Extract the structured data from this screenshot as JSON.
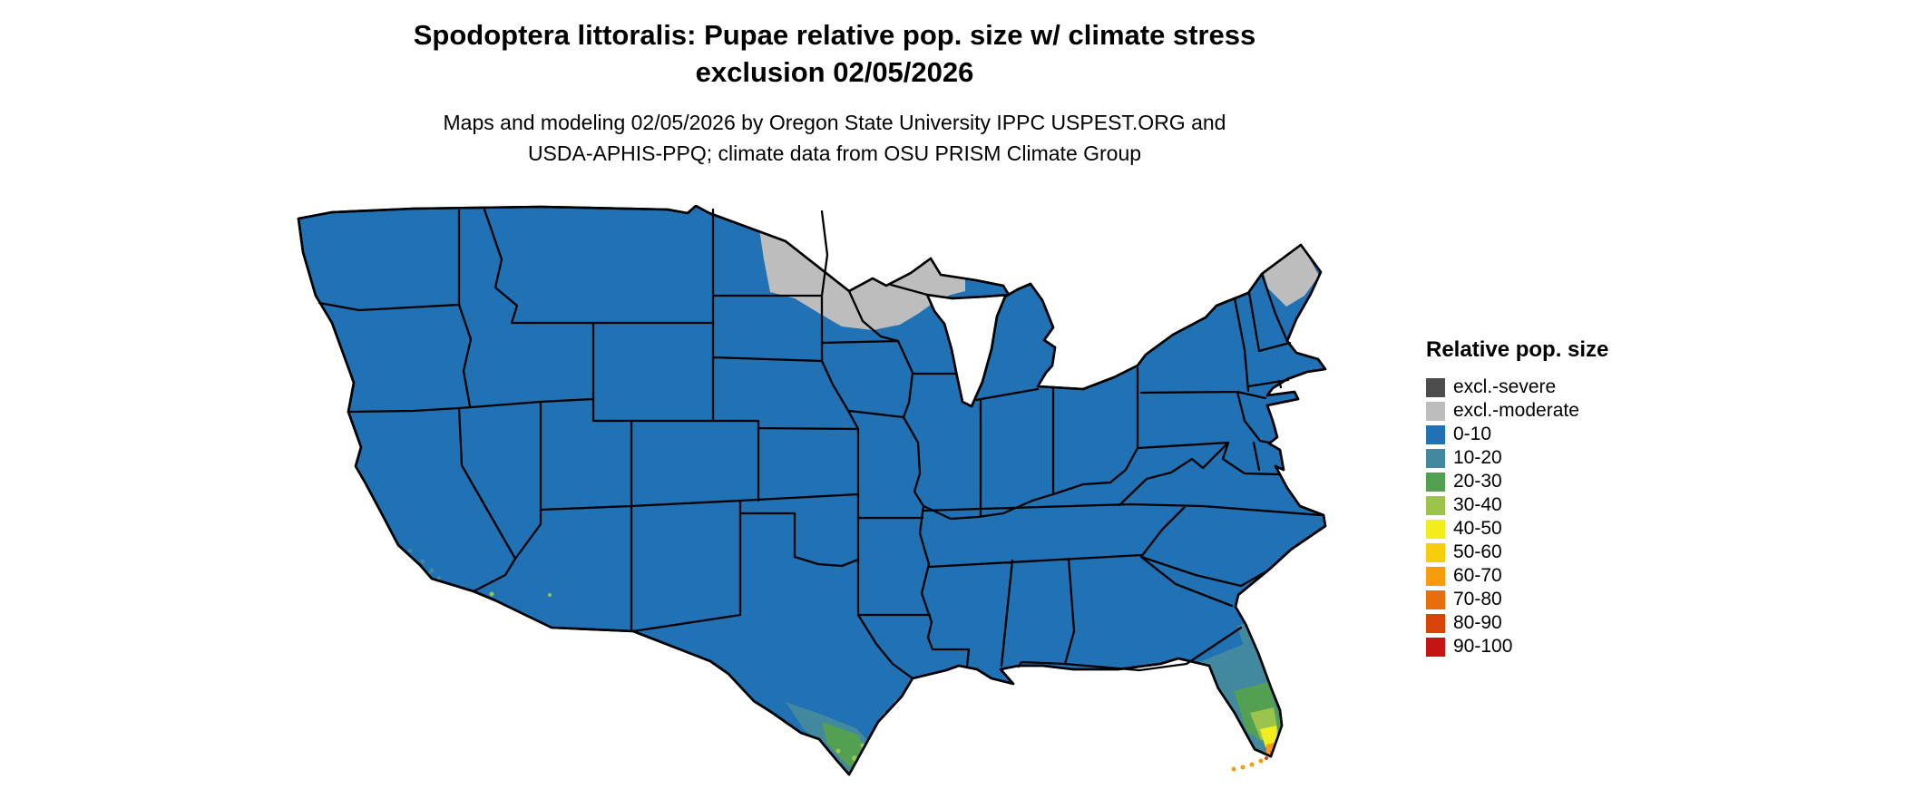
{
  "figure": {
    "title_line1": "Spodoptera littoralis: Pupae relative pop. size w/ climate stress",
    "title_line2": "exclusion 02/05/2026",
    "subtitle_line1": "Maps and modeling 02/05/2026 by Oregon State University IPPC USPEST.ORG and",
    "subtitle_line2": "USDA-APHIS-PPQ; climate data from OSU PRISM Climate Group"
  },
  "legend": {
    "title": "Relative pop. size",
    "items": [
      {
        "key": "excl-severe",
        "label": "excl.-severe",
        "color": "#4d4d4d"
      },
      {
        "key": "excl-moderate",
        "label": "excl.-moderate",
        "color": "#bdbdbd"
      },
      {
        "key": "0-10",
        "label": "0-10",
        "color": "#2171b5"
      },
      {
        "key": "10-20",
        "label": "10-20",
        "color": "#42889e"
      },
      {
        "key": "20-30",
        "label": "20-30",
        "color": "#53a053"
      },
      {
        "key": "30-40",
        "label": "30-40",
        "color": "#9cc34b"
      },
      {
        "key": "40-50",
        "label": "40-50",
        "color": "#f2ee1d"
      },
      {
        "key": "50-60",
        "label": "50-60",
        "color": "#f6cd0c"
      },
      {
        "key": "60-70",
        "label": "60-70",
        "color": "#f79c0c"
      },
      {
        "key": "70-80",
        "label": "70-80",
        "color": "#e96d0a"
      },
      {
        "key": "80-90",
        "label": "80-90",
        "color": "#d84308"
      },
      {
        "key": "90-100",
        "label": "90-100",
        "color": "#c41414"
      }
    ]
  },
  "map": {
    "region": "Continental United States",
    "border_color": "#000000",
    "water_color": "#ffffff"
  }
}
